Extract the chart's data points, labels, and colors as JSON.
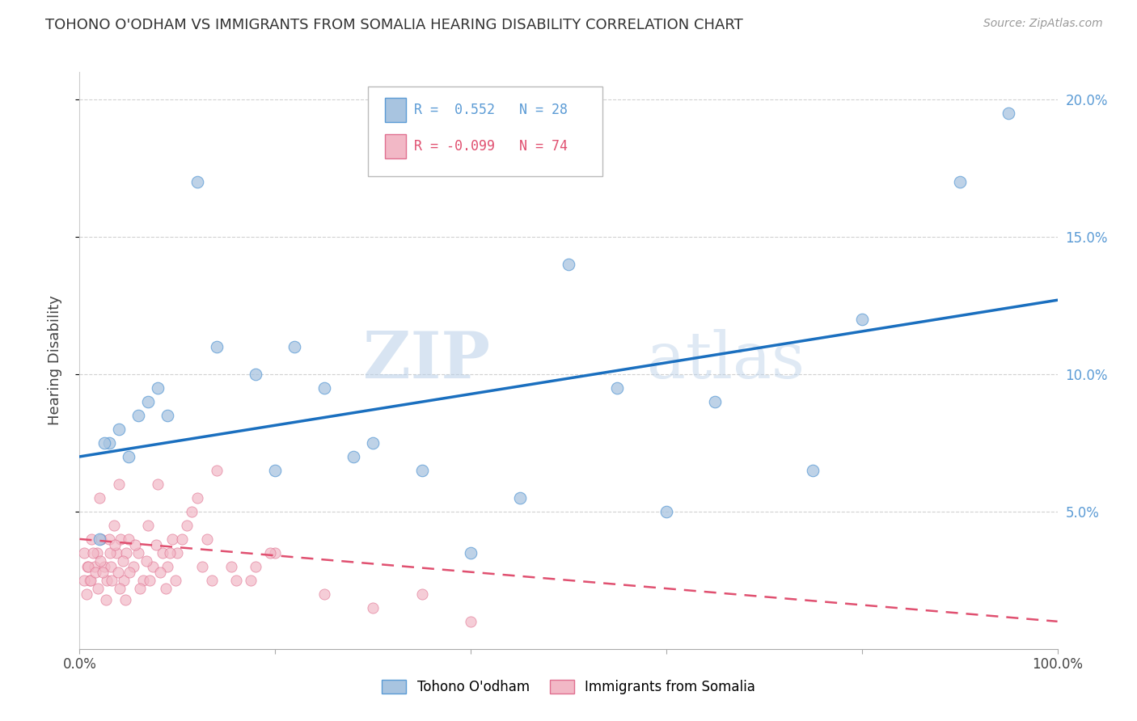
{
  "title": "TOHONO O'ODHAM VS IMMIGRANTS FROM SOMALIA HEARING DISABILITY CORRELATION CHART",
  "source": "Source: ZipAtlas.com",
  "ylabel": "Hearing Disability",
  "watermark_zip": "ZIP",
  "watermark_atlas": "atlas",
  "r_blue": 0.552,
  "n_blue": 28,
  "r_pink": -0.099,
  "n_pink": 74,
  "blue_dot_color": "#a8c4e0",
  "blue_edge_color": "#5b9bd5",
  "blue_line_color": "#1a6fbf",
  "pink_dot_color": "#f2b8c6",
  "pink_edge_color": "#e07090",
  "pink_line_color": "#e05070",
  "legend_blue": "Tohono O'odham",
  "legend_pink": "Immigrants from Somalia",
  "blue_scatter_x": [
    0.02,
    0.12,
    0.08,
    0.06,
    0.04,
    0.03,
    0.05,
    0.07,
    0.09,
    0.025,
    0.14,
    0.18,
    0.22,
    0.25,
    0.2,
    0.28,
    0.3,
    0.35,
    0.4,
    0.45,
    0.5,
    0.55,
    0.65,
    0.75,
    0.8,
    0.9,
    0.95,
    0.6
  ],
  "blue_scatter_y": [
    0.04,
    0.17,
    0.095,
    0.085,
    0.08,
    0.075,
    0.07,
    0.09,
    0.085,
    0.075,
    0.11,
    0.1,
    0.11,
    0.095,
    0.065,
    0.07,
    0.075,
    0.065,
    0.035,
    0.055,
    0.14,
    0.095,
    0.09,
    0.065,
    0.12,
    0.17,
    0.195,
    0.05
  ],
  "pink_scatter_x": [
    0.005,
    0.008,
    0.01,
    0.012,
    0.015,
    0.018,
    0.02,
    0.022,
    0.025,
    0.028,
    0.03,
    0.032,
    0.035,
    0.038,
    0.04,
    0.042,
    0.045,
    0.048,
    0.05,
    0.055,
    0.06,
    0.065,
    0.07,
    0.075,
    0.08,
    0.085,
    0.09,
    0.095,
    0.1,
    0.11,
    0.12,
    0.13,
    0.14,
    0.16,
    0.18,
    0.2,
    0.005,
    0.007,
    0.009,
    0.011,
    0.014,
    0.016,
    0.019,
    0.021,
    0.024,
    0.027,
    0.031,
    0.033,
    0.036,
    0.039,
    0.041,
    0.044,
    0.047,
    0.051,
    0.057,
    0.062,
    0.068,
    0.072,
    0.078,
    0.082,
    0.088,
    0.092,
    0.098,
    0.105,
    0.115,
    0.125,
    0.135,
    0.155,
    0.175,
    0.195,
    0.25,
    0.3,
    0.4,
    0.35
  ],
  "pink_scatter_y": [
    0.035,
    0.03,
    0.025,
    0.04,
    0.03,
    0.035,
    0.055,
    0.04,
    0.03,
    0.025,
    0.04,
    0.03,
    0.045,
    0.035,
    0.06,
    0.04,
    0.025,
    0.035,
    0.04,
    0.03,
    0.035,
    0.025,
    0.045,
    0.03,
    0.06,
    0.035,
    0.03,
    0.04,
    0.035,
    0.045,
    0.055,
    0.04,
    0.065,
    0.025,
    0.03,
    0.035,
    0.025,
    0.02,
    0.03,
    0.025,
    0.035,
    0.028,
    0.022,
    0.032,
    0.028,
    0.018,
    0.035,
    0.025,
    0.038,
    0.028,
    0.022,
    0.032,
    0.018,
    0.028,
    0.038,
    0.022,
    0.032,
    0.025,
    0.038,
    0.028,
    0.022,
    0.035,
    0.025,
    0.04,
    0.05,
    0.03,
    0.025,
    0.03,
    0.025,
    0.035,
    0.02,
    0.015,
    0.01,
    0.02
  ],
  "blue_line_x": [
    0.0,
    1.0
  ],
  "blue_line_y": [
    0.07,
    0.127
  ],
  "pink_line_x": [
    0.0,
    1.0
  ],
  "pink_line_y": [
    0.04,
    0.01
  ],
  "xlim": [
    0.0,
    1.0
  ],
  "ylim": [
    0.0,
    0.21
  ],
  "right_yticks": [
    0.05,
    0.1,
    0.15,
    0.2
  ],
  "right_ytick_labels": [
    "5.0%",
    "10.0%",
    "15.0%",
    "20.0%"
  ],
  "xticks": [
    0.0,
    0.2,
    0.4,
    0.6,
    0.8,
    1.0
  ],
  "xtick_labels": [
    "0.0%",
    "",
    "",
    "",
    "",
    "100.0%"
  ],
  "background_color": "#ffffff",
  "grid_color": "#cccccc",
  "right_label_color": "#5b9bd5"
}
